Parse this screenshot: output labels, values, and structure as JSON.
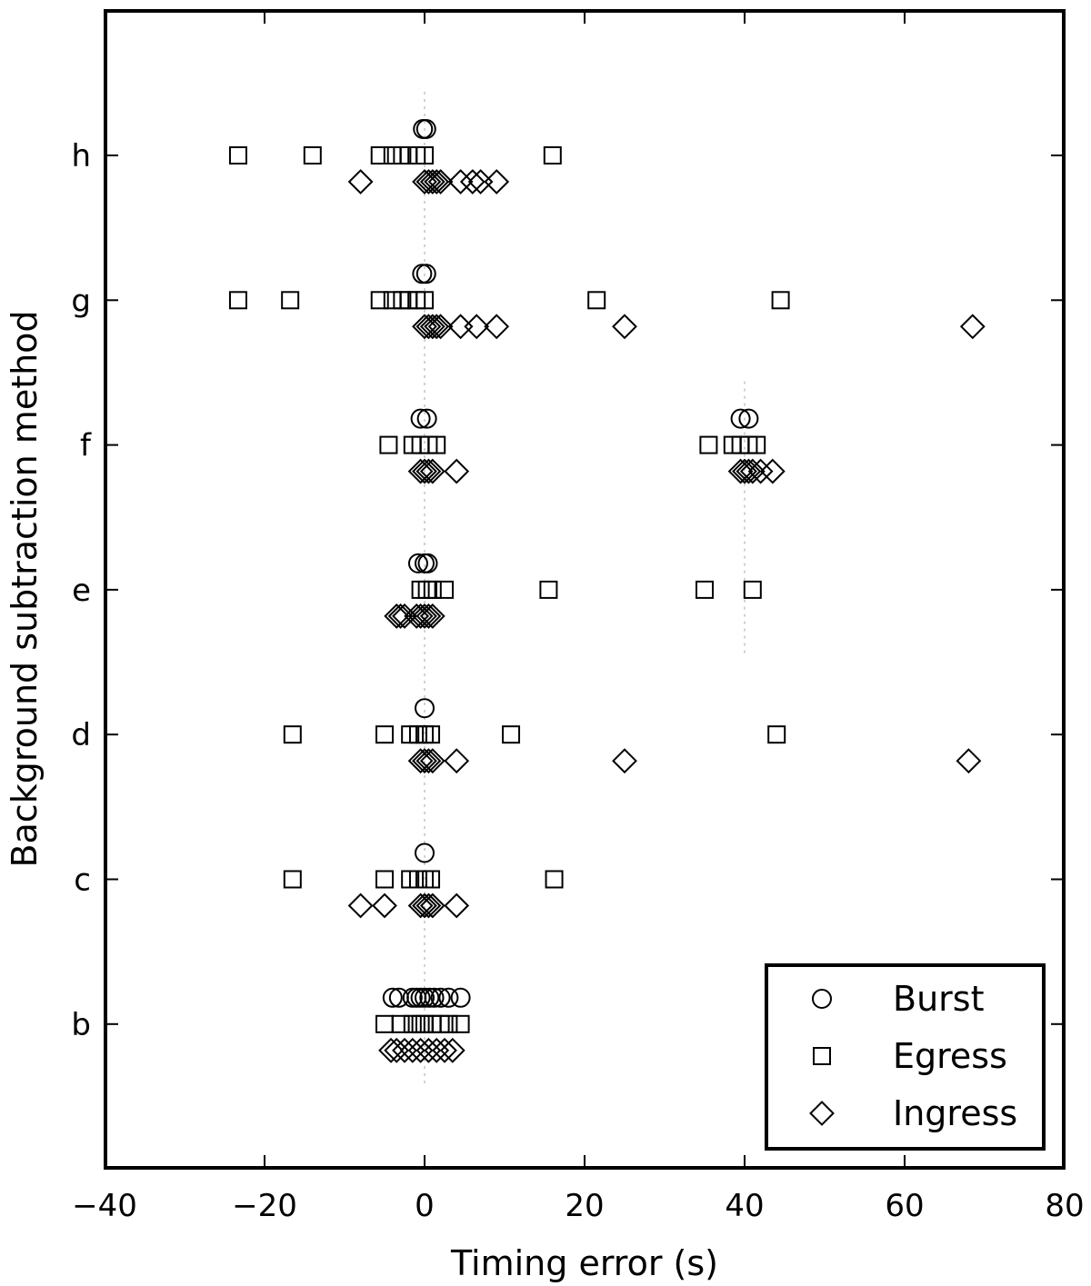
{
  "chart_data": {
    "type": "scatter",
    "title": "",
    "xlabel": "Timing error (s)",
    "ylabel": "Background subtraction method",
    "xlim": [
      -40,
      80
    ],
    "xticks": [
      -40,
      -20,
      0,
      20,
      40,
      60,
      80
    ],
    "xtick_labels": [
      "−40",
      "−20",
      "0",
      "20",
      "40",
      "60",
      "80"
    ],
    "categories": [
      "b",
      "c",
      "d",
      "e",
      "f",
      "g",
      "h"
    ],
    "grid": false,
    "reference_lines": [
      {
        "x": 0,
        "from_category": "b",
        "to_category": "h"
      },
      {
        "x": 40,
        "from_category": "e",
        "to_category": "f"
      }
    ],
    "legend": {
      "position": "bottom-right",
      "entries": [
        {
          "label": "Burst",
          "marker": "circle"
        },
        {
          "label": "Egress",
          "marker": "square"
        },
        {
          "label": "Ingress",
          "marker": "diamond"
        }
      ]
    },
    "series": [
      {
        "name": "Burst",
        "marker": "circle",
        "points": {
          "b": [
            -4,
            -3.2,
            -1.5,
            -1,
            -0.5,
            0,
            0.6,
            1.2,
            2,
            3,
            4.5
          ],
          "c": [
            0
          ],
          "d": [
            0
          ],
          "e": [
            -0.8,
            0,
            0.4
          ],
          "f": [
            -0.5,
            0.3,
            39.5,
            40.5
          ],
          "g": [
            -0.3,
            0.2
          ],
          "h": [
            -0.2,
            0.2
          ]
        }
      },
      {
        "name": "Egress",
        "marker": "square",
        "points": {
          "b": [
            -5,
            -3,
            -1.5,
            -0.5,
            0,
            1,
            2,
            3,
            4.5
          ],
          "c": [
            -16.5,
            -5,
            -1.8,
            -0.8,
            0,
            0.8,
            16.2
          ],
          "d": [
            -16.5,
            -5,
            -1.8,
            -0.8,
            0,
            0.8,
            10.8,
            44
          ],
          "e": [
            -0.5,
            0.3,
            1,
            2.5,
            15.5,
            35,
            41
          ],
          "f": [
            -4.5,
            -1.5,
            -0.5,
            0.5,
            1.5,
            35.5,
            38.5,
            39.5,
            40.5,
            41.5
          ],
          "g": [
            -23.3,
            -16.8,
            -5.6,
            -4,
            -2.8,
            -2,
            -1,
            0,
            21.5,
            44.5
          ],
          "h": [
            -23.3,
            -14,
            -5.6,
            -4,
            -2.8,
            -2,
            -1,
            0,
            16
          ]
        }
      },
      {
        "name": "Ingress",
        "marker": "diamond",
        "points": {
          "b": [
            -4.2,
            -3.5,
            -2.5,
            -1.5,
            -0.5,
            0.5,
            1.5,
            2.5,
            3.5
          ],
          "c": [
            -8,
            -5,
            -0.5,
            0,
            0.5,
            1,
            4
          ],
          "d": [
            -0.5,
            0,
            0.5,
            1,
            4,
            25,
            68
          ],
          "e": [
            -3.5,
            -3,
            -2.5,
            -1,
            -0.5,
            0,
            0.5,
            1
          ],
          "f": [
            -0.5,
            0,
            0.5,
            1,
            4,
            39.5,
            40,
            40.5,
            41,
            42,
            43.5
          ],
          "g": [
            0,
            0.5,
            1,
            1.5,
            2,
            4.5,
            6.5,
            9,
            25,
            68.5
          ],
          "h": [
            -8,
            0,
            0.5,
            1,
            1.5,
            2,
            4.5,
            6,
            7,
            9
          ]
        }
      }
    ]
  }
}
